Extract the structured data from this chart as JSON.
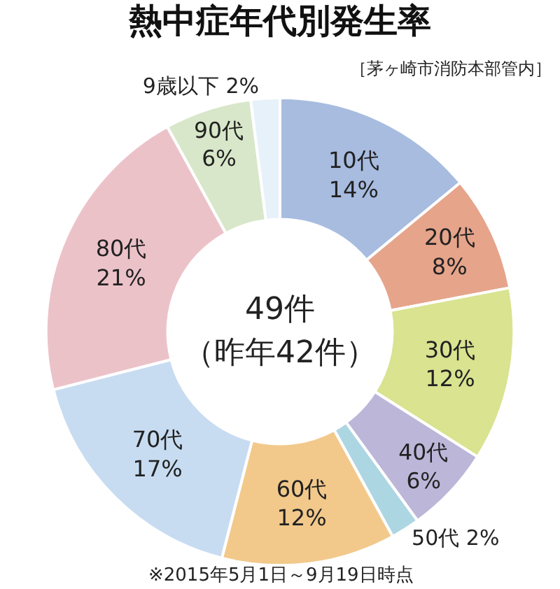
{
  "chart_data": {
    "type": "donut",
    "title": "熱中症年代別発生率",
    "subtitle": "［茅ヶ崎市消防本部管内］",
    "categories": [
      "10代",
      "20代",
      "30代",
      "40代",
      "50代",
      "60代",
      "70代",
      "80代",
      "90代",
      "9歳以下"
    ],
    "values": [
      14,
      8,
      12,
      6,
      2,
      12,
      17,
      21,
      6,
      2
    ],
    "value_labels": [
      "14%",
      "8%",
      "12%",
      "6%",
      "2%",
      "12%",
      "17%",
      "21%",
      "6%",
      "2%"
    ],
    "colors": [
      "#a7bcdf",
      "#e6a48b",
      "#d9e390",
      "#bcb6d9",
      "#add6e3",
      "#f2c98b",
      "#c7dcf1",
      "#ecc2c9",
      "#d8e7c9",
      "#e7f1fa"
    ],
    "annotations": [
      "49件",
      "（昨年42件）",
      "※2015年5月1日～9月19日時点"
    ],
    "legend": false
  }
}
